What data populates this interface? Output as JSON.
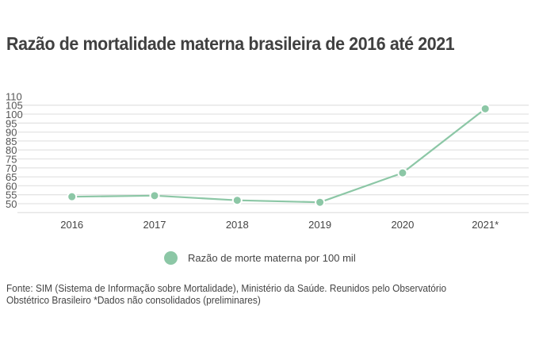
{
  "title": "Razão de mortalidade materna brasileira de 2016 até 2021",
  "legend": {
    "label": "Razão de morte materna por 100 mil",
    "color": "#8cc7a6"
  },
  "source": {
    "line1": "Fonte: SIM (Sistema de Informação sobre Mortalidade), Ministério da Saúde. Reunidos pelo Observatório",
    "line2": "Obstétrico Brasileiro  *Dados não consolidados (preliminares)"
  },
  "chart_data": {
    "type": "line",
    "title": "Razão de mortalidade materna brasileira de 2016 até 2021",
    "xlabel": "",
    "ylabel": "",
    "categories": [
      "2016",
      "2017",
      "2018",
      "2019",
      "2020",
      "2021*"
    ],
    "series": [
      {
        "name": "Razão de morte materna por 100 mil",
        "color": "#8cc7a6",
        "values": [
          53.9,
          54.5,
          51.9,
          50.8,
          67.2,
          103.0
        ]
      }
    ],
    "yticks": [
      110,
      105,
      100,
      95,
      90,
      85,
      80,
      75,
      70,
      65,
      60,
      55,
      50
    ],
    "gridlines": [
      105,
      100,
      95,
      90,
      85,
      80,
      75,
      70,
      65,
      60,
      55,
      50,
      45
    ],
    "ylim": [
      45,
      110
    ],
    "grid": true,
    "legend_position": "bottom-center"
  }
}
